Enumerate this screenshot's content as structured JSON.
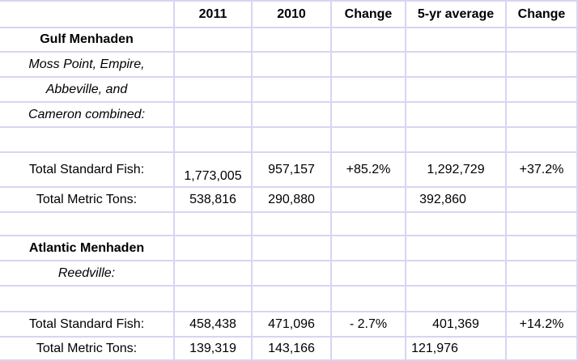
{
  "header": {
    "col_2011": "2011",
    "col_2010": "2010",
    "col_change": "Change",
    "col_5yr": "5-yr average",
    "col_change2": "Change"
  },
  "gulf": {
    "title": "Gulf Menhaden",
    "location_lines": [
      "Moss Point, Empire,",
      "Abbeville, and",
      "Cameron combined:"
    ],
    "standard_fish": {
      "label": "Total Standard Fish:",
      "y2011": "1,773,005",
      "y2010": "957,157",
      "change": "+85.2%",
      "avg5": "1,292,729",
      "change_avg": "+37.2%"
    },
    "metric_tons": {
      "label": "Total Metric Tons:",
      "y2011": "538,816",
      "y2010": "290,880",
      "avg5": "392,860"
    }
  },
  "atlantic": {
    "title": "Atlantic Menhaden",
    "location": "Reedville:",
    "standard_fish": {
      "label": "Total Standard Fish:",
      "y2011": "458,438",
      "y2010": "471,096",
      "change": "- 2.7%",
      "avg5": "401,369",
      "change_avg": "+14.2%"
    },
    "metric_tons": {
      "label": "Total Metric Tons:",
      "y2011": "139,319",
      "y2010": "143,166",
      "avg5": "121,976"
    }
  }
}
